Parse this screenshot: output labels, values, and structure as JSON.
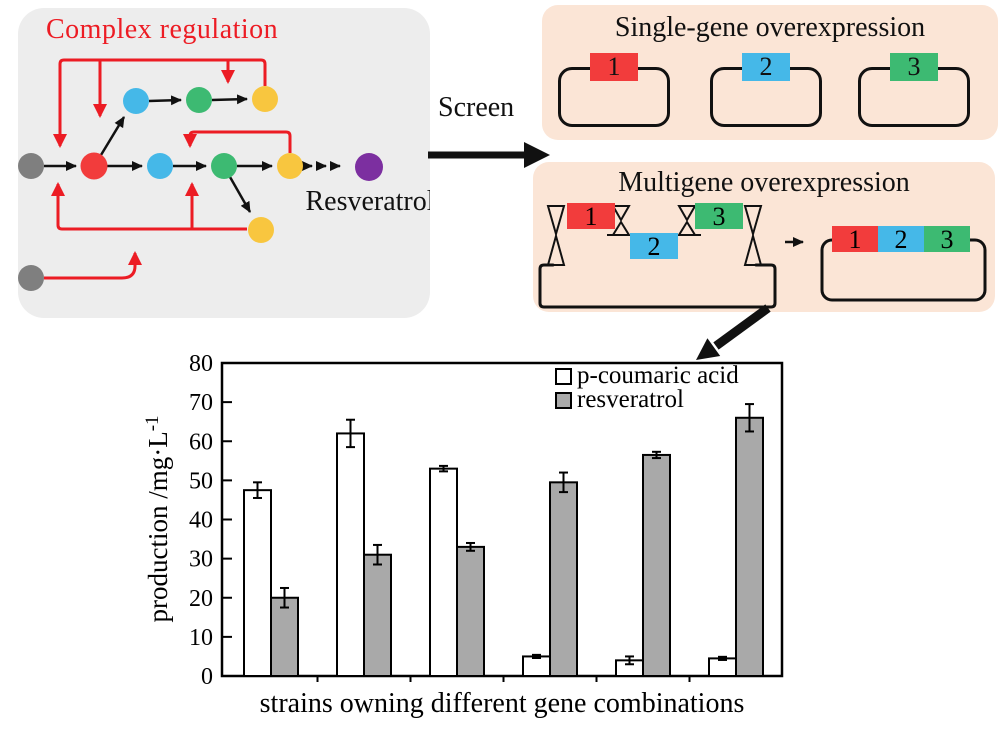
{
  "figure": {
    "regulation_panel": {
      "title": "Complex regulation",
      "title_color": "#ed1c24",
      "product_label": "Resveratrol",
      "background": "#ededed",
      "regulation_color": "#ec1c24",
      "node_colors": {
        "substrate_gray": "#7f7f7f",
        "enzyme_red": "#f23c3c",
        "enzyme_blue": "#45b8e8",
        "enzyme_green": "#3dba72",
        "intermediate_yellow": "#f8c63f",
        "product_purple": "#7c2fa0"
      }
    },
    "screen_label": "Screen",
    "single_gene_panel": {
      "title": "Single-gene overexpression",
      "background": "#fbe5d6"
    },
    "multigene_panel": {
      "title": "Multigene overexpression",
      "background": "#fbe5d6"
    },
    "genes": [
      {
        "label": "1",
        "color": "#f23c3c"
      },
      {
        "label": "2",
        "color": "#45b8e8"
      },
      {
        "label": "3",
        "color": "#3dba72"
      }
    ]
  },
  "chart_data": {
    "type": "bar",
    "title": "",
    "xlabel": "strains owning different gene combinations",
    "ylabel": "production /mg·L⁻¹",
    "ylabel_base": "production /mg·L",
    "ylabel_superscript": "-1",
    "ylim": [
      0,
      80
    ],
    "yticks": [
      0,
      10,
      20,
      30,
      40,
      50,
      60,
      70,
      80
    ],
    "categories": [
      "",
      "",
      "",
      "",
      "",
      ""
    ],
    "legend_position": "top-right",
    "grid": false,
    "bar_border_color": "#000000",
    "series": [
      {
        "name": "p-coumaric acid",
        "fill": "#ffffff",
        "values": [
          47.5,
          62,
          53,
          5,
          4,
          4.5
        ],
        "errors": [
          2,
          3.5,
          0.7,
          0.4,
          1,
          0.4
        ]
      },
      {
        "name": "resveratrol",
        "fill": "#a9a9a9",
        "values": [
          20,
          31,
          33,
          49.5,
          56.5,
          66
        ],
        "errors": [
          2.5,
          2.5,
          1,
          2.5,
          0.8,
          3.5
        ]
      }
    ]
  }
}
